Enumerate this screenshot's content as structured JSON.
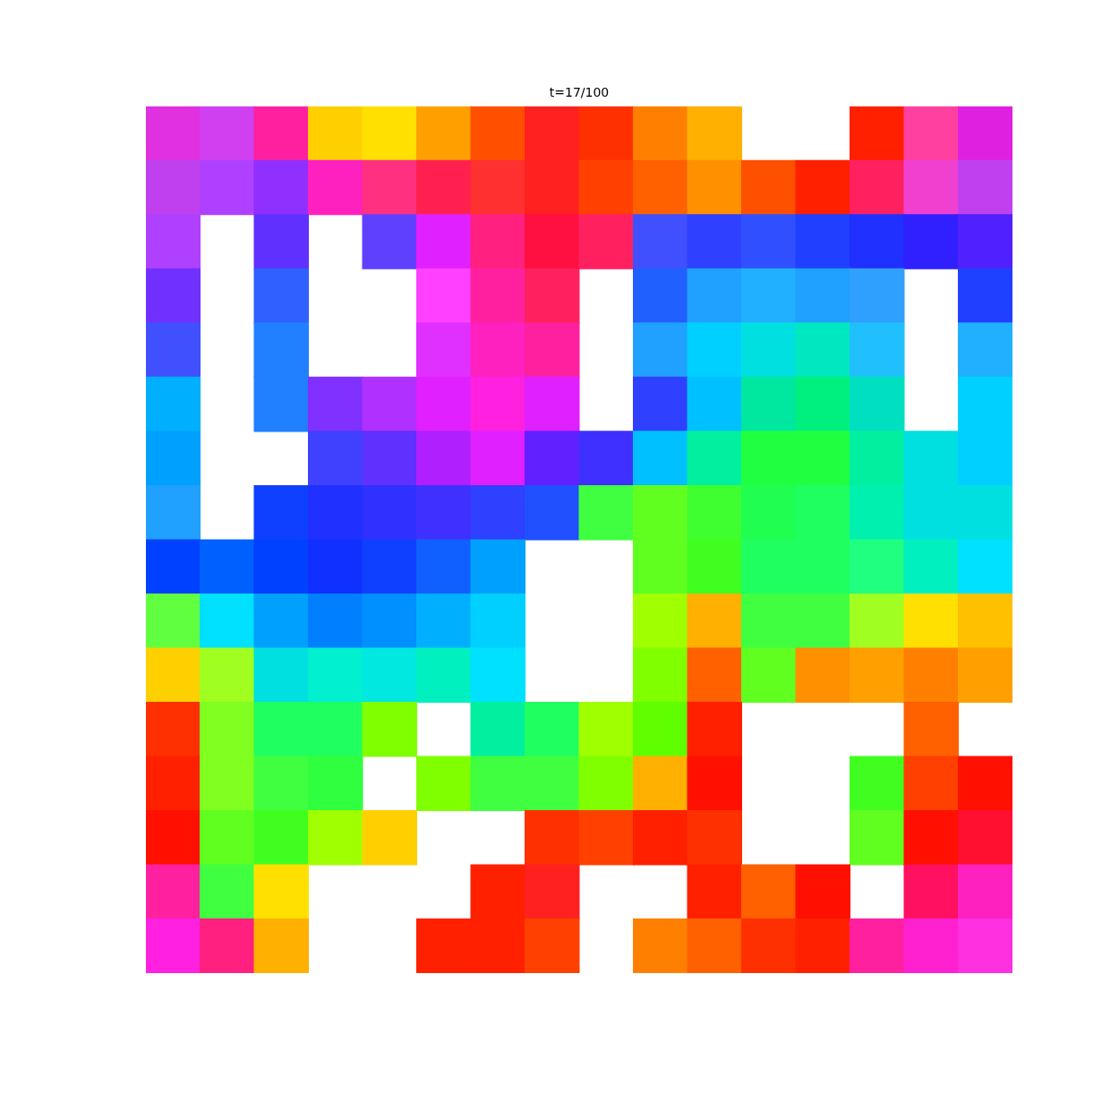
{
  "chart_data": {
    "type": "scatter",
    "title": "t=17/100",
    "xlim": [
      0,
      1
    ],
    "ylim": [
      0,
      1
    ],
    "tick_labels": false,
    "grid": false,
    "marker": "square",
    "x": [
      0.03125,
      0.09375,
      0.15625,
      0.21875,
      0.28125,
      0.34375,
      0.40625,
      0.46875,
      0.53125,
      0.59375,
      0.65625,
      0.84375,
      0.90625,
      0.96875,
      0.03125,
      0.09375,
      0.15625,
      0.21875,
      0.28125,
      0.34375,
      0.40625,
      0.46875,
      0.53125,
      0.59375,
      0.65625,
      0.71875,
      0.78125,
      0.84375,
      0.90625,
      0.96875,
      0.03125,
      0.15625,
      0.28125,
      0.34375,
      0.40625,
      0.46875,
      0.53125,
      0.59375,
      0.65625,
      0.71875,
      0.78125,
      0.84375,
      0.90625,
      0.96875,
      0.03125,
      0.15625,
      0.34375,
      0.40625,
      0.46875,
      0.59375,
      0.65625,
      0.71875,
      0.78125,
      0.84375,
      0.96875,
      0.03125,
      0.15625,
      0.34375,
      0.40625,
      0.46875,
      0.59375,
      0.65625,
      0.71875,
      0.78125,
      0.84375,
      0.96875,
      0.03125,
      0.15625,
      0.21875,
      0.28125,
      0.34375,
      0.40625,
      0.46875,
      0.59375,
      0.65625,
      0.71875,
      0.78125,
      0.84375,
      0.96875,
      0.03125,
      0.21875,
      0.28125,
      0.34375,
      0.40625,
      0.46875,
      0.53125,
      0.59375,
      0.65625,
      0.71875,
      0.78125,
      0.84375,
      0.90625,
      0.96875,
      0.03125,
      0.15625,
      0.21875,
      0.28125,
      0.34375,
      0.40625,
      0.46875,
      0.53125,
      0.59375,
      0.65625,
      0.71875,
      0.78125,
      0.84375,
      0.90625,
      0.96875,
      0.03125,
      0.09375,
      0.15625,
      0.21875,
      0.28125,
      0.34375,
      0.40625,
      0.59375,
      0.65625,
      0.71875,
      0.78125,
      0.84375,
      0.90625,
      0.96875,
      0.03125,
      0.09375,
      0.15625,
      0.21875,
      0.28125,
      0.34375,
      0.40625,
      0.59375,
      0.65625,
      0.71875,
      0.78125,
      0.84375,
      0.90625,
      0.96875,
      0.03125,
      0.09375,
      0.15625,
      0.21875,
      0.28125,
      0.34375,
      0.40625,
      0.59375,
      0.65625,
      0.71875,
      0.78125,
      0.84375,
      0.90625,
      0.96875,
      0.03125,
      0.09375,
      0.15625,
      0.21875,
      0.28125,
      0.40625,
      0.46875,
      0.53125,
      0.59375,
      0.65625,
      0.90625,
      0.03125,
      0.09375,
      0.15625,
      0.21875,
      0.34375,
      0.40625,
      0.46875,
      0.53125,
      0.59375,
      0.65625,
      0.84375,
      0.90625,
      0.96875,
      0.03125,
      0.09375,
      0.15625,
      0.21875,
      0.28125,
      0.46875,
      0.53125,
      0.59375,
      0.65625,
      0.84375,
      0.90625,
      0.96875,
      0.03125,
      0.09375,
      0.15625,
      0.40625,
      0.46875,
      0.65625,
      0.71875,
      0.78125,
      0.90625,
      0.96875,
      0.03125,
      0.09375,
      0.15625,
      0.34375,
      0.40625,
      0.46875,
      0.59375,
      0.65625,
      0.71875,
      0.78125,
      0.84375,
      0.90625,
      0.96875
    ],
    "y": [
      0.96875,
      0.96875,
      0.96875,
      0.96875,
      0.96875,
      0.96875,
      0.96875,
      0.96875,
      0.96875,
      0.96875,
      0.96875,
      0.96875,
      0.96875,
      0.96875,
      0.90625,
      0.90625,
      0.90625,
      0.90625,
      0.90625,
      0.90625,
      0.90625,
      0.90625,
      0.90625,
      0.90625,
      0.90625,
      0.90625,
      0.90625,
      0.90625,
      0.90625,
      0.90625,
      0.84375,
      0.84375,
      0.84375,
      0.84375,
      0.84375,
      0.84375,
      0.84375,
      0.84375,
      0.84375,
      0.84375,
      0.84375,
      0.84375,
      0.84375,
      0.84375,
      0.78125,
      0.78125,
      0.78125,
      0.78125,
      0.78125,
      0.78125,
      0.78125,
      0.78125,
      0.78125,
      0.78125,
      0.78125,
      0.71875,
      0.71875,
      0.71875,
      0.71875,
      0.71875,
      0.71875,
      0.71875,
      0.71875,
      0.71875,
      0.71875,
      0.71875,
      0.65625,
      0.65625,
      0.65625,
      0.65625,
      0.65625,
      0.65625,
      0.65625,
      0.65625,
      0.65625,
      0.65625,
      0.65625,
      0.65625,
      0.65625,
      0.59375,
      0.59375,
      0.59375,
      0.59375,
      0.59375,
      0.59375,
      0.59375,
      0.59375,
      0.59375,
      0.59375,
      0.59375,
      0.59375,
      0.59375,
      0.59375,
      0.53125,
      0.53125,
      0.53125,
      0.53125,
      0.53125,
      0.53125,
      0.53125,
      0.53125,
      0.53125,
      0.53125,
      0.53125,
      0.53125,
      0.53125,
      0.53125,
      0.53125,
      0.46875,
      0.46875,
      0.46875,
      0.46875,
      0.46875,
      0.46875,
      0.46875,
      0.46875,
      0.46875,
      0.46875,
      0.46875,
      0.46875,
      0.46875,
      0.46875,
      0.40625,
      0.40625,
      0.40625,
      0.40625,
      0.40625,
      0.40625,
      0.40625,
      0.40625,
      0.40625,
      0.40625,
      0.40625,
      0.40625,
      0.40625,
      0.40625,
      0.34375,
      0.34375,
      0.34375,
      0.34375,
      0.34375,
      0.34375,
      0.34375,
      0.34375,
      0.34375,
      0.34375,
      0.34375,
      0.34375,
      0.34375,
      0.34375,
      0.28125,
      0.28125,
      0.28125,
      0.28125,
      0.28125,
      0.28125,
      0.28125,
      0.28125,
      0.28125,
      0.28125,
      0.28125,
      0.21875,
      0.21875,
      0.21875,
      0.21875,
      0.21875,
      0.21875,
      0.21875,
      0.21875,
      0.21875,
      0.21875,
      0.21875,
      0.21875,
      0.21875,
      0.15625,
      0.15625,
      0.15625,
      0.15625,
      0.15625,
      0.15625,
      0.15625,
      0.15625,
      0.15625,
      0.15625,
      0.15625,
      0.15625,
      0.09375,
      0.09375,
      0.09375,
      0.09375,
      0.09375,
      0.09375,
      0.09375,
      0.09375,
      0.09375,
      0.09375,
      0.03125,
      0.03125,
      0.03125,
      0.03125,
      0.03125,
      0.03125,
      0.03125,
      0.03125,
      0.03125,
      0.03125,
      0.03125,
      0.03125,
      0.03125
    ],
    "colors": [
      "#e030e0",
      "#d040f0",
      "#ff20a0",
      "#ffd000",
      "#ffe000",
      "#ffa000",
      "#ff5000",
      "#ff2020",
      "#ff3000",
      "#ff8000",
      "#ffb000",
      "#ff2000",
      "#ff40a0",
      "#e020e0",
      "#c040f0",
      "#b040ff",
      "#9030ff",
      "#ff20c0",
      "#ff3080",
      "#ff2050",
      "#ff3030",
      "#ff2020",
      "#ff4000",
      "#ff6000",
      "#ff9000",
      "#ff5000",
      "#ff2000",
      "#ff2060",
      "#f040d0",
      "#c040f0",
      "#b040ff",
      "#6030ff",
      "#6040ff",
      "#e020ff",
      "#ff2080",
      "#ff1040",
      "#ff2060",
      "#4050ff",
      "#3040ff",
      "#3050ff",
      "#2040ff",
      "#2030ff",
      "#3020ff",
      "#5020ff",
      "#7030ff",
      "#3060ff",
      "#ff40ff",
      "#ff20a0",
      "#ff2060",
      "#2060ff",
      "#20a0ff",
      "#20b0ff",
      "#20a0ff",
      "#30a0ff",
      "#2040ff",
      "#4050ff",
      "#2080ff",
      "#e030ff",
      "#ff20c0",
      "#ff20a0",
      "#20a0ff",
      "#00d0ff",
      "#00e0e0",
      "#00e8c0",
      "#20c0ff",
      "#20b0ff",
      "#00b0ff",
      "#2080ff",
      "#8030ff",
      "#b030ff",
      "#e020ff",
      "#ff20e0",
      "#e020ff",
      "#3040ff",
      "#00c0ff",
      "#00e8a0",
      "#00f080",
      "#00e0c0",
      "#00d0ff",
      "#00a0ff",
      "#4040ff",
      "#6030ff",
      "#b020ff",
      "#e020ff",
      "#6020ff",
      "#4030ff",
      "#00c0ff",
      "#00f0a0",
      "#20ff40",
      "#20ff40",
      "#00f0a0",
      "#00e0e0",
      "#00d0ff",
      "#20a0ff",
      "#1040ff",
      "#2030ff",
      "#3030ff",
      "#4030ff",
      "#3040ff",
      "#2050ff",
      "#40ff40",
      "#60ff20",
      "#40ff30",
      "#20ff50",
      "#20ff60",
      "#00f0b0",
      "#00e0e0",
      "#00e0e0",
      "#0040ff",
      "#0060ff",
      "#0040ff",
      "#1030ff",
      "#1040ff",
      "#1060ff",
      "#00a0ff",
      "#60ff20",
      "#40ff20",
      "#20ff60",
      "#20ff60",
      "#20ff80",
      "#00f0c0",
      "#00e0ff",
      "#60ff40",
      "#00e0ff",
      "#00a0ff",
      "#0080ff",
      "#0090ff",
      "#00b0ff",
      "#00d0ff",
      "#a0ff00",
      "#ffb000",
      "#40ff40",
      "#40ff40",
      "#a0ff20",
      "#ffe000",
      "#ffc000",
      "#ffd000",
      "#a0ff20",
      "#00e0e0",
      "#00f0d0",
      "#00e8e0",
      "#00f0c0",
      "#00e0ff",
      "#80ff00",
      "#ff6000",
      "#60ff20",
      "#ff9000",
      "#ffa000",
      "#ff8000",
      "#ffa000",
      "#ff3000",
      "#80ff20",
      "#20ff60",
      "#20ff60",
      "#80ff00",
      "#00f0a0",
      "#20ff60",
      "#a0ff00",
      "#60ff00",
      "#ff2000",
      "#ff6000",
      "#ff2000",
      "#80ff20",
      "#40ff40",
      "#30ff40",
      "#80ff00",
      "#40ff40",
      "#40ff40",
      "#80ff00",
      "#ffb000",
      "#ff1000",
      "#40ff20",
      "#ff4000",
      "#ff1000",
      "#ff1000",
      "#60ff20",
      "#40ff20",
      "#a0ff00",
      "#ffd000",
      "#ff3000",
      "#ff4000",
      "#ff2000",
      "#ff3000",
      "#60ff20",
      "#ff1000",
      "#ff1030",
      "#ff20a0",
      "#40ff40",
      "#ffe000",
      "#ff2000",
      "#ff2020",
      "#ff2000",
      "#ff6000",
      "#ff1000",
      "#ff1060",
      "#ff20c0",
      "#ff20e0",
      "#ff2080",
      "#ffb000",
      "#ff2000",
      "#ff2000",
      "#ff4000",
      "#ff8000",
      "#ff6000",
      "#ff3000",
      "#ff2000",
      "#ff20a0",
      "#ff20d0",
      "#ff30e0"
    ]
  }
}
